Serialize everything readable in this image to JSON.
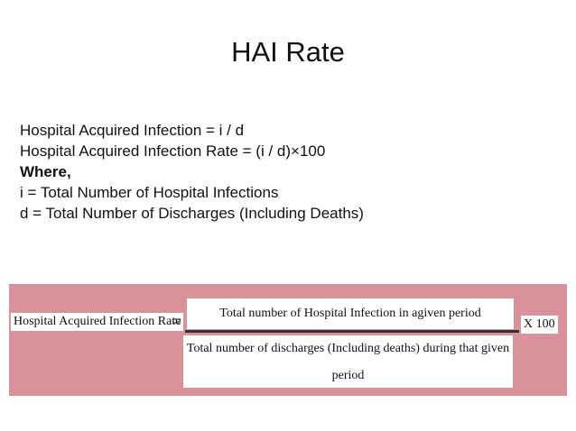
{
  "header": {
    "title": "HAI Rate"
  },
  "body": {
    "lines": [
      {
        "text": "Hospital Acquired Infection = i / d",
        "bold": false
      },
      {
        "text": "Hospital Acquired Infection Rate = (i / d)×100",
        "bold": false
      },
      {
        "text": "Where,",
        "bold": true
      },
      {
        "text": "i = Total Number of Hospital Infections",
        "bold": false
      },
      {
        "text": "d = Total Number of Discharges (Including Deaths)",
        "bold": false
      }
    ]
  },
  "formula": {
    "label": "Hospital Acquired Infection Rate",
    "equals": "=",
    "numerator": "Total number of Hospital Infection  in  agiven period",
    "denominator": "Total number of discharges (Including deaths) during that given period",
    "multiplier": "X 100"
  }
}
